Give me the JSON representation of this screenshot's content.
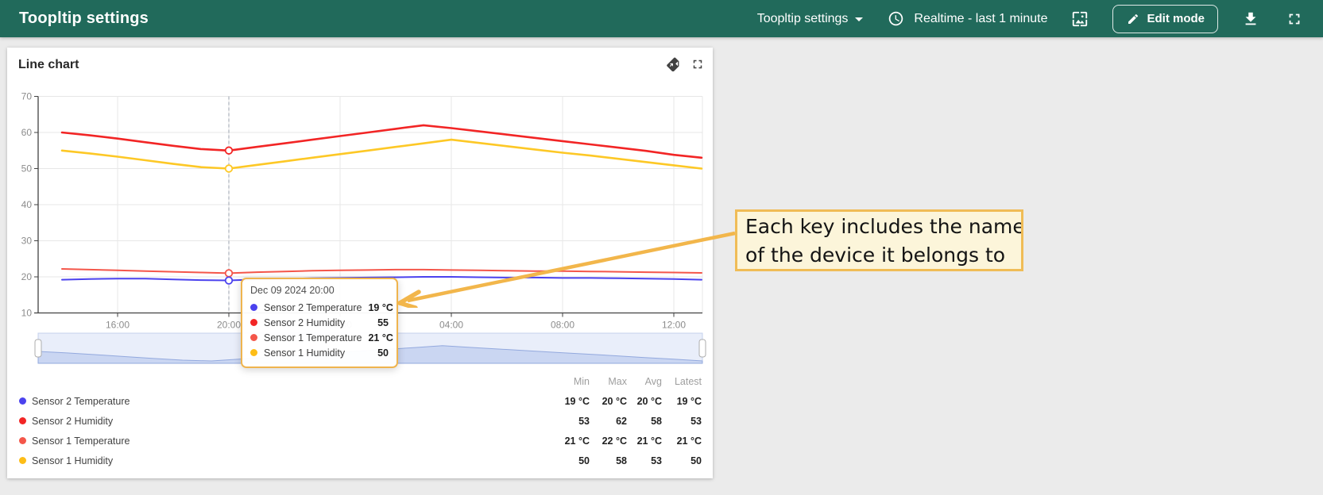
{
  "appbar": {
    "bg_color": "#216a5b",
    "title": "Toopltip settings",
    "dashboard_selector": "Toopltip settings",
    "time_window": "Realtime - last 1 minute",
    "edit_button_label": "Edit mode"
  },
  "widget": {
    "title": "Line chart"
  },
  "tooltip": {
    "timestamp": "Dec 09 2024 20:00",
    "rows": [
      {
        "label": "Sensor 2 Temperature",
        "value": "19 °C",
        "color": "#4b42ee"
      },
      {
        "label": "Sensor 2 Humidity",
        "value": "55",
        "color": "#f22525"
      },
      {
        "label": "Sensor 1 Temperature",
        "value": "21 °C",
        "color": "#f4564a"
      },
      {
        "label": "Sensor 1 Humidity",
        "value": "50",
        "color": "#fdbd17"
      }
    ]
  },
  "annotation": {
    "line1": "Each key includes the name",
    "line2": "of the device it belongs to",
    "border_color": "#f0bc56",
    "bg_color": "#fcf5da",
    "arrow_color": "#f2b64b"
  },
  "legend": {
    "columns": {
      "min": "Min",
      "max": "Max",
      "avg": "Avg",
      "latest": "Latest"
    },
    "rows": [
      {
        "label": "Sensor 2 Temperature",
        "color": "#4b42ee",
        "min": "19 °C",
        "max": "20 °C",
        "avg": "20 °C",
        "latest": "19 °C"
      },
      {
        "label": "Sensor 2 Humidity",
        "color": "#f22525",
        "min": "53",
        "max": "62",
        "avg": "58",
        "latest": "53"
      },
      {
        "label": "Sensor 1 Temperature",
        "color": "#f4564a",
        "min": "21 °C",
        "max": "22 °C",
        "avg": "21 °C",
        "latest": "21 °C"
      },
      {
        "label": "Sensor 1 Humidity",
        "color": "#fdbd17",
        "min": "50",
        "max": "58",
        "avg": "53",
        "latest": "50"
      }
    ]
  },
  "chart_data": {
    "type": "line",
    "title": "Line chart",
    "x_tick_labels": [
      "16:00",
      "20:00",
      "00:00",
      "04:00",
      "08:00",
      "12:00"
    ],
    "x_tick_indices": [
      2,
      6,
      10,
      14,
      18,
      22
    ],
    "x_start_hour": "14:00",
    "highlight_index": 6,
    "highlight_time": "Dec 09 2024 20:00",
    "y_ticks": [
      10,
      20,
      30,
      40,
      50,
      60,
      70
    ],
    "ylim": [
      10,
      70
    ],
    "grid": true,
    "legend_position": "bottom-table",
    "series": [
      {
        "name": "Sensor 2 Humidity",
        "color": "#f22525",
        "width": 2.6,
        "values": [
          60,
          59.2,
          58.3,
          57.3,
          56.3,
          55.4,
          55,
          56,
          57,
          58,
          59,
          60,
          61,
          62,
          61.2,
          60.3,
          59.4,
          58.5,
          57.6,
          56.7,
          55.8,
          54.9,
          53.8,
          53
        ]
      },
      {
        "name": "Sensor 1 Humidity",
        "color": "#fdc826",
        "width": 2.6,
        "values": [
          55,
          54.2,
          53.3,
          52.3,
          51.3,
          50.4,
          50,
          51,
          52,
          53,
          54,
          55,
          56,
          57,
          58,
          57.1,
          56.2,
          55.3,
          54.4,
          53.6,
          52.7,
          51.8,
          50.9,
          50
        ]
      },
      {
        "name": "Sensor 1 Temperature",
        "color": "#f4564a",
        "width": 2,
        "values": [
          22.2,
          22,
          21.8,
          21.6,
          21.4,
          21.2,
          21,
          21.3,
          21.5,
          21.7,
          21.8,
          21.9,
          22,
          22,
          21.9,
          21.8,
          21.7,
          21.6,
          21.6,
          21.5,
          21.4,
          21.3,
          21.2,
          21.1
        ]
      },
      {
        "name": "Sensor 2 Temperature",
        "color": "#4b42ee",
        "width": 2,
        "values": [
          19.2,
          19.4,
          19.5,
          19.5,
          19.3,
          19.1,
          19,
          19.3,
          19.5,
          19.6,
          19.7,
          19.8,
          19.9,
          20,
          20,
          19.9,
          19.8,
          19.8,
          19.7,
          19.7,
          19.6,
          19.5,
          19.4,
          19.2
        ]
      }
    ],
    "range_selector": {
      "full_range_selected": true
    }
  }
}
